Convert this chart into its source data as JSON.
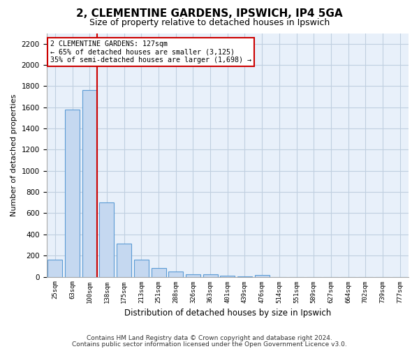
{
  "title": "2, CLEMENTINE GARDENS, IPSWICH, IP4 5GA",
  "subtitle": "Size of property relative to detached houses in Ipswich",
  "xlabel": "Distribution of detached houses by size in Ipswich",
  "ylabel": "Number of detached properties",
  "bin_labels": [
    "25sqm",
    "63sqm",
    "100sqm",
    "138sqm",
    "175sqm",
    "213sqm",
    "251sqm",
    "288sqm",
    "326sqm",
    "363sqm",
    "401sqm",
    "439sqm",
    "476sqm",
    "514sqm",
    "551sqm",
    "589sqm",
    "627sqm",
    "664sqm",
    "702sqm",
    "739sqm",
    "777sqm"
  ],
  "bar_values": [
    160,
    1580,
    1760,
    700,
    315,
    160,
    80,
    50,
    25,
    25,
    10,
    5,
    15,
    0,
    0,
    0,
    0,
    0,
    0,
    0,
    0
  ],
  "bar_color": "#c5d8f0",
  "bar_edge_color": "#5b9bd5",
  "vline_x": 2.42,
  "vline_color": "#cc0000",
  "annotation_line1": "2 CLEMENTINE GARDENS: 127sqm",
  "annotation_line2": "← 65% of detached houses are smaller (3,125)",
  "annotation_line3": "35% of semi-detached houses are larger (1,698) →",
  "annotation_box_color": "#cc0000",
  "ylim": [
    0,
    2300
  ],
  "yticks": [
    0,
    200,
    400,
    600,
    800,
    1000,
    1200,
    1400,
    1600,
    1800,
    2000,
    2200
  ],
  "grid_color": "#c0cfe0",
  "background_color": "#e8f0fa",
  "footer_line1": "Contains HM Land Registry data © Crown copyright and database right 2024.",
  "footer_line2": "Contains public sector information licensed under the Open Government Licence v3.0."
}
